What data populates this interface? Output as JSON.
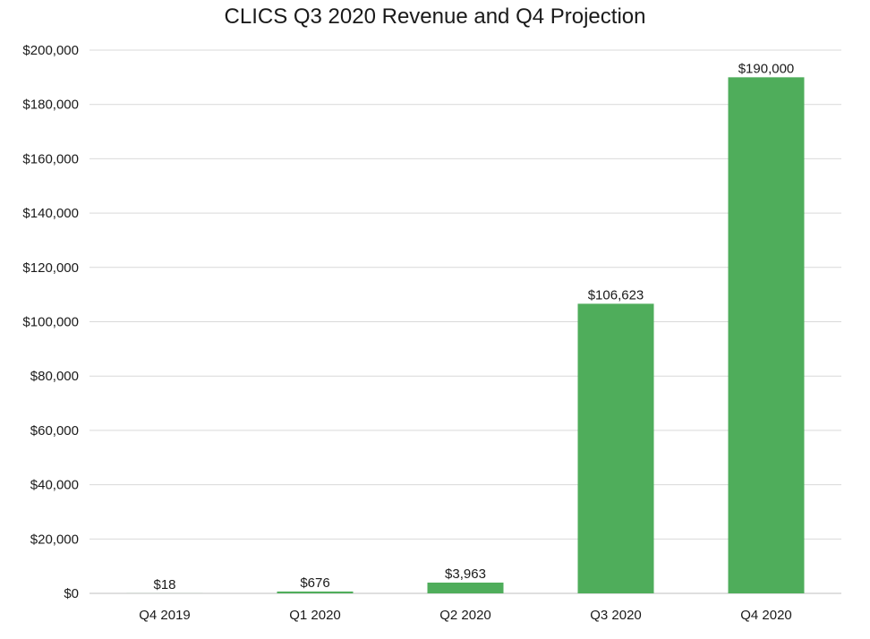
{
  "chart_data": {
    "type": "bar",
    "title": "CLICS Q3 2020 Revenue and Q4 Projection",
    "xlabel": "",
    "ylabel": "",
    "categories": [
      "Q4 2019",
      "Q1 2020",
      "Q2 2020",
      "Q3 2020",
      "Q4 2020"
    ],
    "values": [
      18,
      676,
      3963,
      106623,
      190000
    ],
    "data_labels": [
      "$18",
      "$676",
      "$3,963",
      "$106,623",
      "$190,000"
    ],
    "ylim": [
      0,
      200000
    ],
    "yticks": [
      0,
      20000,
      40000,
      60000,
      80000,
      100000,
      120000,
      140000,
      160000,
      180000,
      200000
    ],
    "ytick_labels": [
      "$0",
      "$20,000",
      "$40,000",
      "$60,000",
      "$80,000",
      "$100,000",
      "$120,000",
      "$140,000",
      "$160,000",
      "$180,000",
      "$200,000"
    ],
    "grid": true,
    "legend": "none",
    "bar_color": "#4fad5b"
  }
}
